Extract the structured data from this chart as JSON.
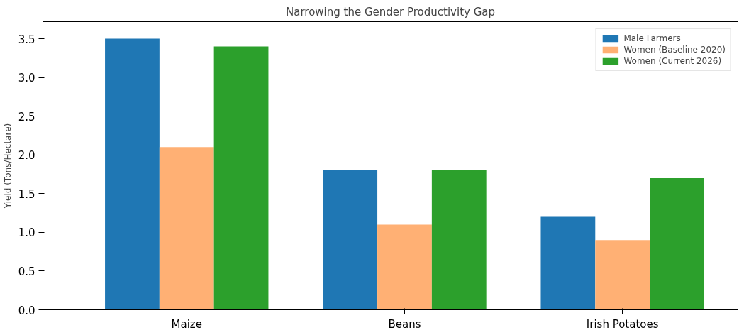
{
  "chart_data": {
    "type": "bar",
    "title": "Narrowing the Gender Productivity Gap",
    "ylabel": "Yield (Tons/Hectare)",
    "categories": [
      "Maize",
      "Beans",
      "Irish Potatoes"
    ],
    "series": [
      {
        "name": "Male Farmers",
        "color": "#1f77b4",
        "values": [
          3.5,
          1.8,
          1.2
        ]
      },
      {
        "name": "Women (Baseline 2020)",
        "color": "#ffb074",
        "values": [
          2.1,
          1.1,
          0.9
        ]
      },
      {
        "name": "Women (Current 2026)",
        "color": "#2ca02c",
        "values": [
          3.4,
          1.8,
          1.7
        ]
      }
    ],
    "ylim": [
      0,
      3.72
    ],
    "yticks": [
      {
        "value": 0,
        "label": "0.0"
      },
      0.5,
      {
        "value": 1,
        "label": "1.0"
      },
      1.5,
      {
        "value": 2,
        "label": "2.0"
      },
      2.5,
      {
        "value": 3,
        "label": "3.0"
      },
      3.5
    ],
    "grid": false,
    "legend": "top right"
  }
}
